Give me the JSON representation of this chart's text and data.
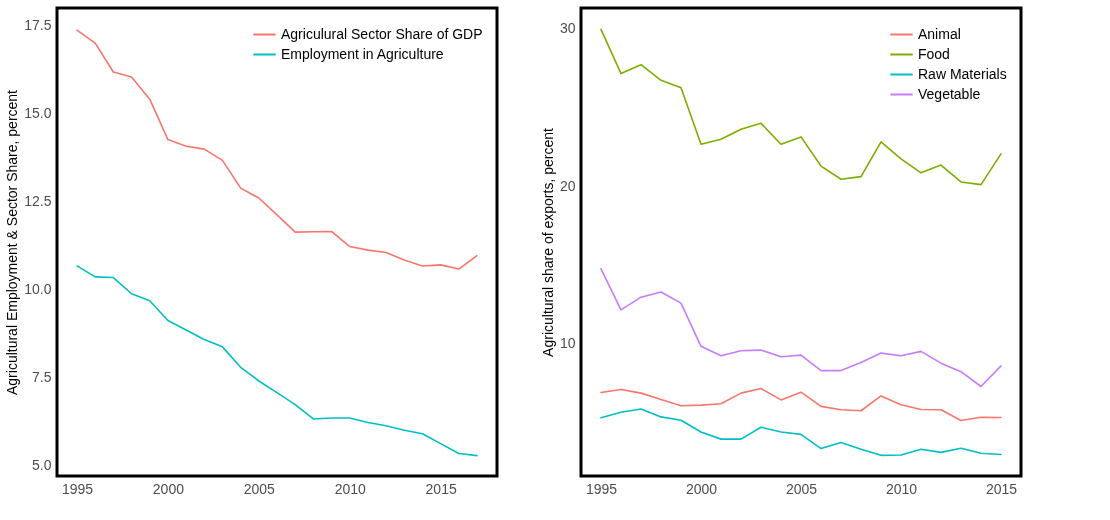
{
  "chart_data": [
    {
      "type": "line",
      "ylabel": "Agricultural Employment & Sector Share, percent",
      "x": [
        1995,
        1996,
        1997,
        1998,
        1999,
        2000,
        2001,
        2002,
        2003,
        2004,
        2005,
        2006,
        2007,
        2008,
        2009,
        2010,
        2011,
        2012,
        2013,
        2014,
        2015,
        2016,
        2017
      ],
      "series": [
        {
          "name": "Agriculural Sector Share of GDP",
          "color": "#f8766d",
          "values": [
            17.37,
            17.0,
            16.18,
            16.04,
            15.41,
            14.26,
            14.07,
            13.99,
            13.67,
            12.88,
            12.6,
            12.12,
            11.63,
            11.64,
            11.65,
            11.22,
            11.12,
            11.05,
            10.84,
            10.67,
            10.7,
            10.58,
            10.96
          ]
        },
        {
          "name": "Employment in Agriculture",
          "color": "#00bfc4",
          "values": [
            10.67,
            10.36,
            10.34,
            9.88,
            9.68,
            9.12,
            8.85,
            8.58,
            8.37,
            7.79,
            7.4,
            7.07,
            6.73,
            6.32,
            6.35,
            6.35,
            6.22,
            6.13,
            6.0,
            5.9,
            5.62,
            5.34,
            5.28
          ]
        }
      ],
      "xlim": [
        1993.9,
        2018.1
      ],
      "xticks": [
        1995,
        2000,
        2005,
        2010,
        2015
      ],
      "ylim": [
        4.7,
        18.0
      ],
      "yticks": [
        {
          "value": 5,
          "label": "5.0"
        },
        7.5,
        {
          "value": 10,
          "label": "10.0"
        },
        12.5,
        {
          "value": 15,
          "label": "15.0"
        },
        17.5
      ],
      "legend": "top right",
      "grid": false
    },
    {
      "type": "line",
      "ylabel": "Agricultural share of exports, percent",
      "x": [
        1995,
        1996,
        1997,
        1998,
        1999,
        2000,
        2001,
        2002,
        2003,
        2004,
        2005,
        2006,
        2007,
        2008,
        2009,
        2010,
        2011,
        2012,
        2013,
        2014,
        2015
      ],
      "series": [
        {
          "name": "Animal",
          "color": "#f8766d",
          "values": [
            6.9,
            7.09,
            6.86,
            6.45,
            6.06,
            6.1,
            6.19,
            6.86,
            7.15,
            6.43,
            6.92,
            6.02,
            5.8,
            5.74,
            6.68,
            6.12,
            5.82,
            5.8,
            5.12,
            5.33,
            5.31
          ]
        },
        {
          "name": "Food",
          "color": "#7cae00",
          "values": [
            29.94,
            27.14,
            27.7,
            26.71,
            26.24,
            22.65,
            22.97,
            23.61,
            23.98,
            22.65,
            23.12,
            21.27,
            20.43,
            20.6,
            22.8,
            21.72,
            20.84,
            21.33,
            20.26,
            20.09,
            22.04
          ]
        },
        {
          "name": "Raw Materials",
          "color": "#00bfc4",
          "values": [
            5.29,
            5.65,
            5.85,
            5.35,
            5.14,
            4.39,
            3.94,
            3.94,
            4.69,
            4.39,
            4.24,
            3.34,
            3.73,
            3.3,
            2.91,
            2.93,
            3.3,
            3.1,
            3.36,
            3.04,
            2.96
          ]
        },
        {
          "name": "Vegetable",
          "color": "#c77cff",
          "values": [
            14.75,
            12.14,
            12.95,
            13.28,
            12.57,
            9.83,
            9.23,
            9.55,
            9.59,
            9.17,
            9.27,
            8.29,
            8.29,
            8.8,
            9.4,
            9.23,
            9.51,
            8.76,
            8.22,
            7.28,
            8.59
          ]
        }
      ],
      "xlim": [
        1994,
        2016
      ],
      "xticks": [
        1995,
        2000,
        2005,
        2010,
        2015
      ],
      "ylim": [
        1.6,
        31.3
      ],
      "yticks": [
        10,
        20,
        30
      ],
      "legend": "top right",
      "grid": false
    }
  ]
}
